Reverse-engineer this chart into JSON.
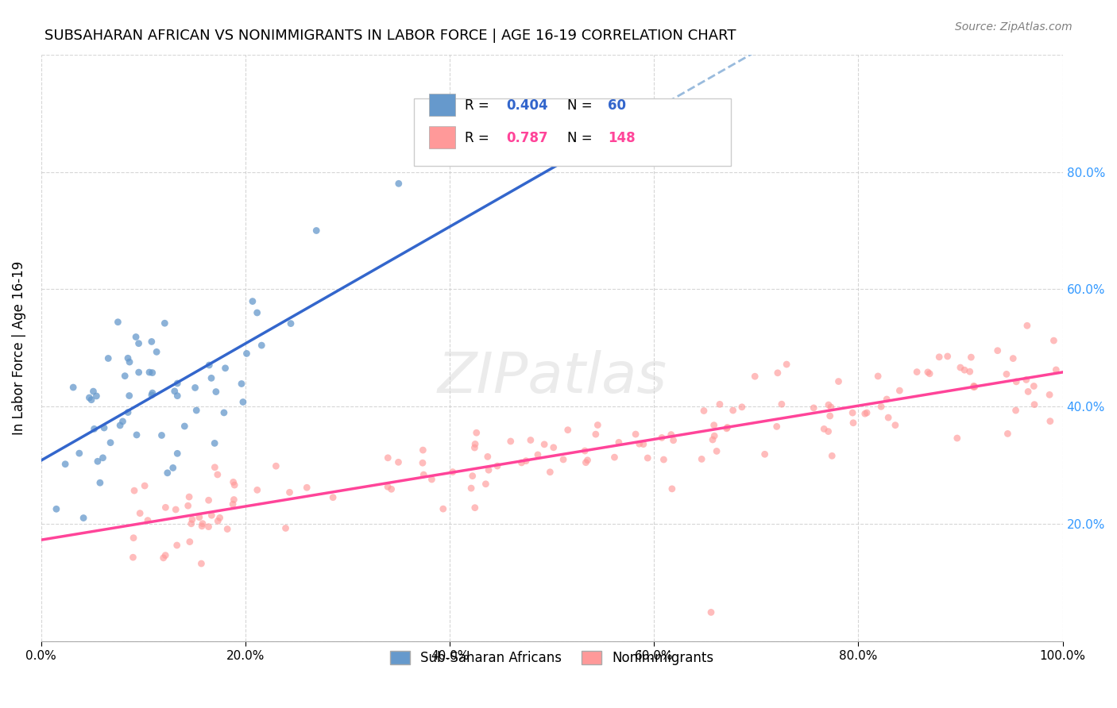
{
  "title": "SUBSAHARAN AFRICAN VS NONIMMIGRANTS IN LABOR FORCE | AGE 16-19 CORRELATION CHART",
  "source": "Source: ZipAtlas.com",
  "ylabel": "In Labor Force | Age 16-19",
  "xlim": [
    0.0,
    1.0
  ],
  "ylim": [
    0.0,
    1.0
  ],
  "xticks": [
    0.0,
    0.2,
    0.4,
    0.6,
    0.8,
    1.0
  ],
  "yticks": [
    0.0,
    0.2,
    0.4,
    0.6,
    0.8,
    1.0
  ],
  "xticklabels": [
    "0.0%",
    "20.0%",
    "40.0%",
    "60.0%",
    "80.0%",
    "100.0%"
  ],
  "right_yticks": [
    0.2,
    0.4,
    0.6,
    0.8
  ],
  "right_yticklabels": [
    "20.0%",
    "40.0%",
    "60.0%",
    "80.0%"
  ],
  "blue_R": 0.404,
  "blue_N": 60,
  "pink_R": 0.787,
  "pink_N": 148,
  "blue_color": "#6699CC",
  "pink_color": "#FF9999",
  "blue_scatter_alpha": 0.75,
  "pink_scatter_alpha": 0.65,
  "scatter_size": 40,
  "background_color": "#FFFFFF",
  "grid_color": "#CCCCCC",
  "right_tick_color": "#3399FF",
  "legend_label_1": "Sub-Saharan Africans",
  "legend_label_2": "Nonimmigrants",
  "watermark": "ZIPatlas",
  "blue_line_color": "#3366CC",
  "pink_line_color": "#FF4499",
  "blue_dash_color": "#99BBDD",
  "seed": 42
}
